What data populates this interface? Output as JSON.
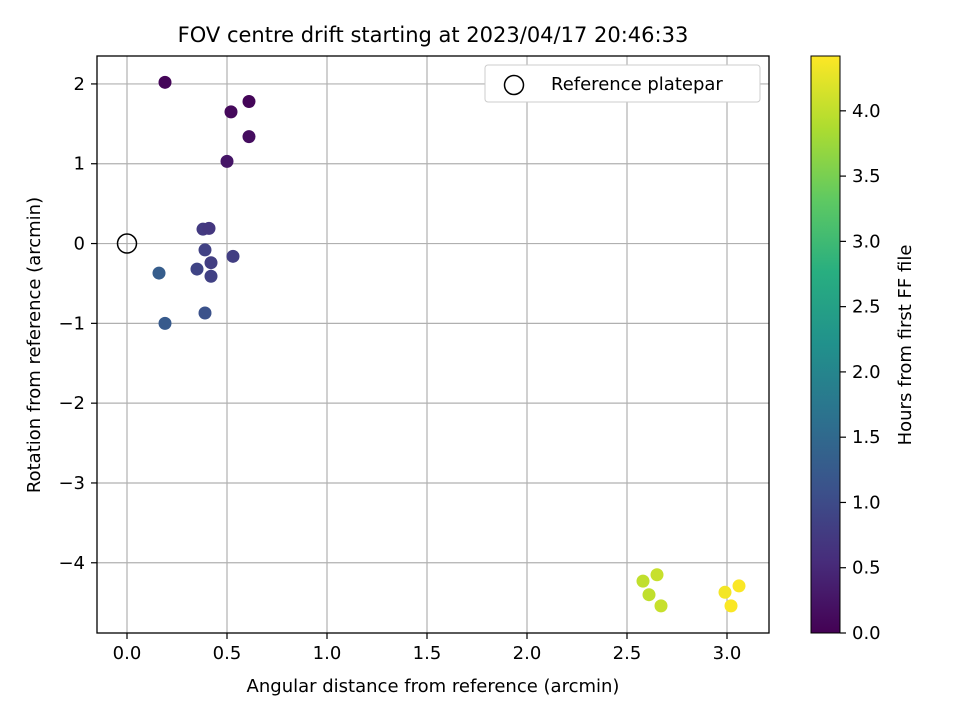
{
  "chart_data": {
    "type": "scatter",
    "title": "FOV centre drift starting at 2023/04/17 20:46:33",
    "xlabel": "Angular distance from reference (arcmin)",
    "ylabel": "Rotation from reference (arcmin)",
    "xlim": [
      -0.15,
      3.21
    ],
    "ylim": [
      -4.88,
      2.35
    ],
    "xticks": [
      0.0,
      0.5,
      1.0,
      1.5,
      2.0,
      2.5,
      3.0
    ],
    "xtick_labels": [
      "0.0",
      "0.5",
      "1.0",
      "1.5",
      "2.0",
      "2.5",
      "3.0"
    ],
    "yticks": [
      2,
      1,
      0,
      -1,
      -2,
      -3,
      -4
    ],
    "ytick_labels": [
      "2",
      "1",
      "0",
      "−1",
      "−2",
      "−3",
      "−4"
    ],
    "grid": true,
    "legend": {
      "placement": "top-right",
      "entries": [
        "Reference platepar"
      ]
    },
    "reference_point": {
      "x": 0.0,
      "y": 0.0
    },
    "colorbar": {
      "label": "Hours from first FF file",
      "range": [
        0.0,
        4.42
      ],
      "ticks": [
        0.0,
        0.5,
        1.0,
        1.5,
        2.0,
        2.5,
        3.0,
        3.5,
        4.0
      ],
      "tick_labels": [
        "0.0",
        "0.5",
        "1.0",
        "1.5",
        "2.0",
        "2.5",
        "3.0",
        "3.5",
        "4.0"
      ],
      "colormap": "viridis"
    },
    "points": [
      {
        "x": 0.19,
        "y": 2.02,
        "t": 0.05
      },
      {
        "x": 0.52,
        "y": 1.65,
        "t": 0.1
      },
      {
        "x": 0.61,
        "y": 1.78,
        "t": 0.05
      },
      {
        "x": 0.61,
        "y": 1.34,
        "t": 0.15
      },
      {
        "x": 0.5,
        "y": 1.03,
        "t": 0.25
      },
      {
        "x": 0.38,
        "y": 0.18,
        "t": 0.75
      },
      {
        "x": 0.41,
        "y": 0.19,
        "t": 0.7
      },
      {
        "x": 0.39,
        "y": -0.08,
        "t": 0.85
      },
      {
        "x": 0.53,
        "y": -0.16,
        "t": 0.8
      },
      {
        "x": 0.42,
        "y": -0.24,
        "t": 0.8
      },
      {
        "x": 0.35,
        "y": -0.32,
        "t": 0.9
      },
      {
        "x": 0.42,
        "y": -0.41,
        "t": 0.85
      },
      {
        "x": 0.16,
        "y": -0.37,
        "t": 1.3
      },
      {
        "x": 0.39,
        "y": -0.87,
        "t": 1.1
      },
      {
        "x": 0.19,
        "y": -1.0,
        "t": 1.25
      },
      {
        "x": 2.58,
        "y": -4.23,
        "t": 4.0
      },
      {
        "x": 2.65,
        "y": -4.15,
        "t": 4.05
      },
      {
        "x": 2.61,
        "y": -4.4,
        "t": 4.0
      },
      {
        "x": 2.67,
        "y": -4.54,
        "t": 4.05
      },
      {
        "x": 2.99,
        "y": -4.37,
        "t": 4.35
      },
      {
        "x": 3.06,
        "y": -4.29,
        "t": 4.4
      },
      {
        "x": 3.02,
        "y": -4.54,
        "t": 4.4
      }
    ]
  }
}
